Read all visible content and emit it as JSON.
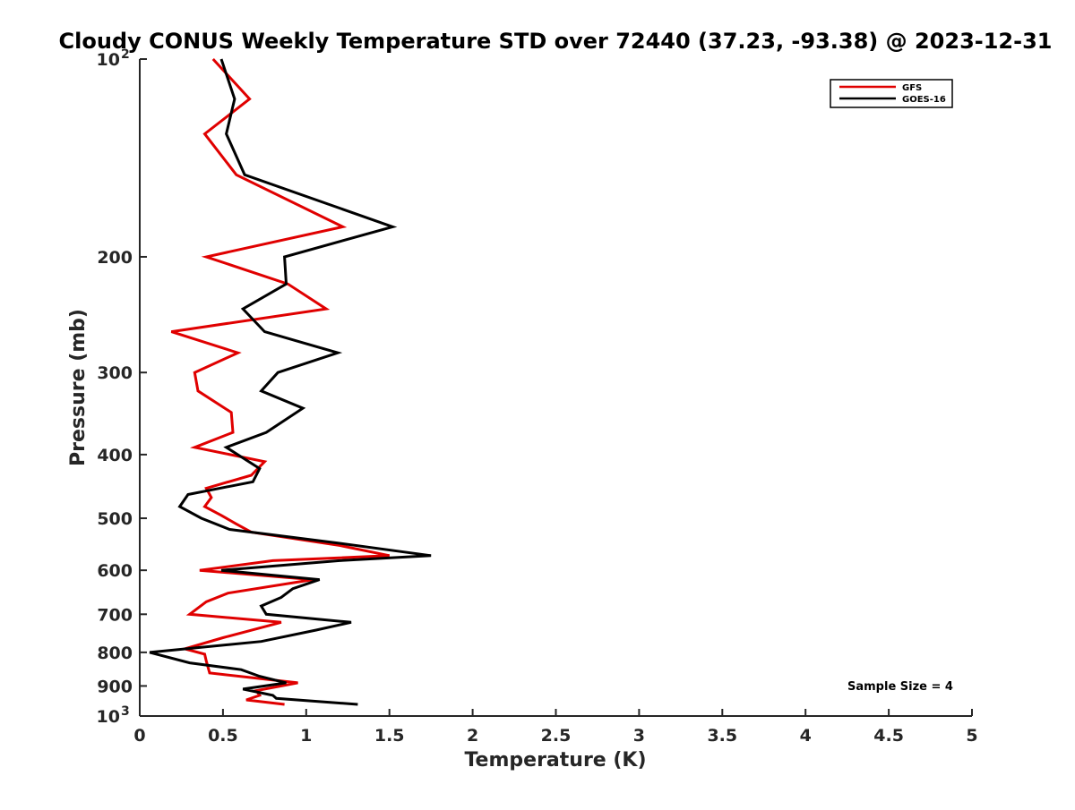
{
  "chart_data": {
    "type": "line",
    "title": "Cloudy CONUS Weekly Temperature STD over 72440 (37.23, -93.38) @ 2023-12-31",
    "xlabel": "Temperature (K)",
    "ylabel": "Pressure (mb)",
    "xlim": [
      0,
      5
    ],
    "ylim": [
      100,
      1000
    ],
    "y_scale": "log",
    "y_reversed": true,
    "grid": false,
    "legend_position": "top-right",
    "x_ticks": [
      0,
      0.5,
      1,
      1.5,
      2,
      2.5,
      3,
      3.5,
      4,
      4.5,
      5
    ],
    "x_tick_labels": [
      "0",
      "0.5",
      "1",
      "1.5",
      "2",
      "2.5",
      "3",
      "3.5",
      "4",
      "4.5",
      "5"
    ],
    "y_ticks": [
      {
        "value": 100,
        "label": "10",
        "exp": "2"
      },
      {
        "value": 200,
        "label": "200",
        "exp": ""
      },
      {
        "value": 300,
        "label": "300",
        "exp": ""
      },
      {
        "value": 400,
        "label": "400",
        "exp": ""
      },
      {
        "value": 500,
        "label": "500",
        "exp": ""
      },
      {
        "value": 600,
        "label": "600",
        "exp": ""
      },
      {
        "value": 700,
        "label": "700",
        "exp": ""
      },
      {
        "value": 800,
        "label": "800",
        "exp": ""
      },
      {
        "value": 900,
        "label": "900",
        "exp": ""
      },
      {
        "value": 1000,
        "label": "10",
        "exp": "3"
      }
    ],
    "series": [
      {
        "name": "GFS",
        "color": "#e00000",
        "points": [
          [
            0.44,
            100
          ],
          [
            0.66,
            115
          ],
          [
            0.39,
            130
          ],
          [
            0.58,
            150
          ],
          [
            1.22,
            180
          ],
          [
            0.4,
            200
          ],
          [
            0.89,
            220
          ],
          [
            1.12,
            240
          ],
          [
            0.19,
            260
          ],
          [
            0.59,
            280
          ],
          [
            0.33,
            300
          ],
          [
            0.35,
            320
          ],
          [
            0.55,
            345
          ],
          [
            0.56,
            370
          ],
          [
            0.33,
            390
          ],
          [
            0.75,
            410
          ],
          [
            0.67,
            430
          ],
          [
            0.4,
            450
          ],
          [
            0.43,
            465
          ],
          [
            0.39,
            480
          ],
          [
            0.49,
            495
          ],
          [
            0.58,
            510
          ],
          [
            0.67,
            525
          ],
          [
            1.2,
            550
          ],
          [
            1.5,
            570
          ],
          [
            0.8,
            580
          ],
          [
            0.36,
            600
          ],
          [
            1.04,
            620
          ],
          [
            0.53,
            650
          ],
          [
            0.4,
            670
          ],
          [
            0.3,
            700
          ],
          [
            0.85,
            720
          ],
          [
            0.5,
            760
          ],
          [
            0.27,
            790
          ],
          [
            0.39,
            805
          ],
          [
            0.4,
            825
          ],
          [
            0.42,
            860
          ],
          [
            0.95,
            890
          ],
          [
            0.7,
            915
          ],
          [
            0.72,
            930
          ],
          [
            0.64,
            945
          ],
          [
            0.87,
            960
          ]
        ]
      },
      {
        "name": "GOES-16",
        "color": "#000000",
        "points": [
          [
            0.49,
            100
          ],
          [
            0.57,
            115
          ],
          [
            0.52,
            130
          ],
          [
            0.63,
            150
          ],
          [
            1.52,
            180
          ],
          [
            0.87,
            200
          ],
          [
            0.88,
            220
          ],
          [
            0.62,
            240
          ],
          [
            0.75,
            260
          ],
          [
            1.19,
            280
          ],
          [
            0.83,
            300
          ],
          [
            0.73,
            320
          ],
          [
            0.98,
            340
          ],
          [
            0.76,
            370
          ],
          [
            0.52,
            390
          ],
          [
            0.72,
            420
          ],
          [
            0.68,
            440
          ],
          [
            0.29,
            460
          ],
          [
            0.24,
            480
          ],
          [
            0.37,
            500
          ],
          [
            0.54,
            520
          ],
          [
            1.18,
            545
          ],
          [
            1.75,
            570
          ],
          [
            1.2,
            580
          ],
          [
            0.49,
            600
          ],
          [
            1.08,
            620
          ],
          [
            0.92,
            640
          ],
          [
            0.85,
            660
          ],
          [
            0.73,
            680
          ],
          [
            0.76,
            700
          ],
          [
            1.27,
            720
          ],
          [
            1.06,
            740
          ],
          [
            0.73,
            770
          ],
          [
            0.06,
            800
          ],
          [
            0.3,
            830
          ],
          [
            0.61,
            850
          ],
          [
            0.72,
            870
          ],
          [
            0.88,
            890
          ],
          [
            0.62,
            910
          ],
          [
            0.8,
            930
          ],
          [
            0.82,
            940
          ],
          [
            1.31,
            960
          ]
        ]
      }
    ],
    "annotation": "Sample Size = 4"
  }
}
